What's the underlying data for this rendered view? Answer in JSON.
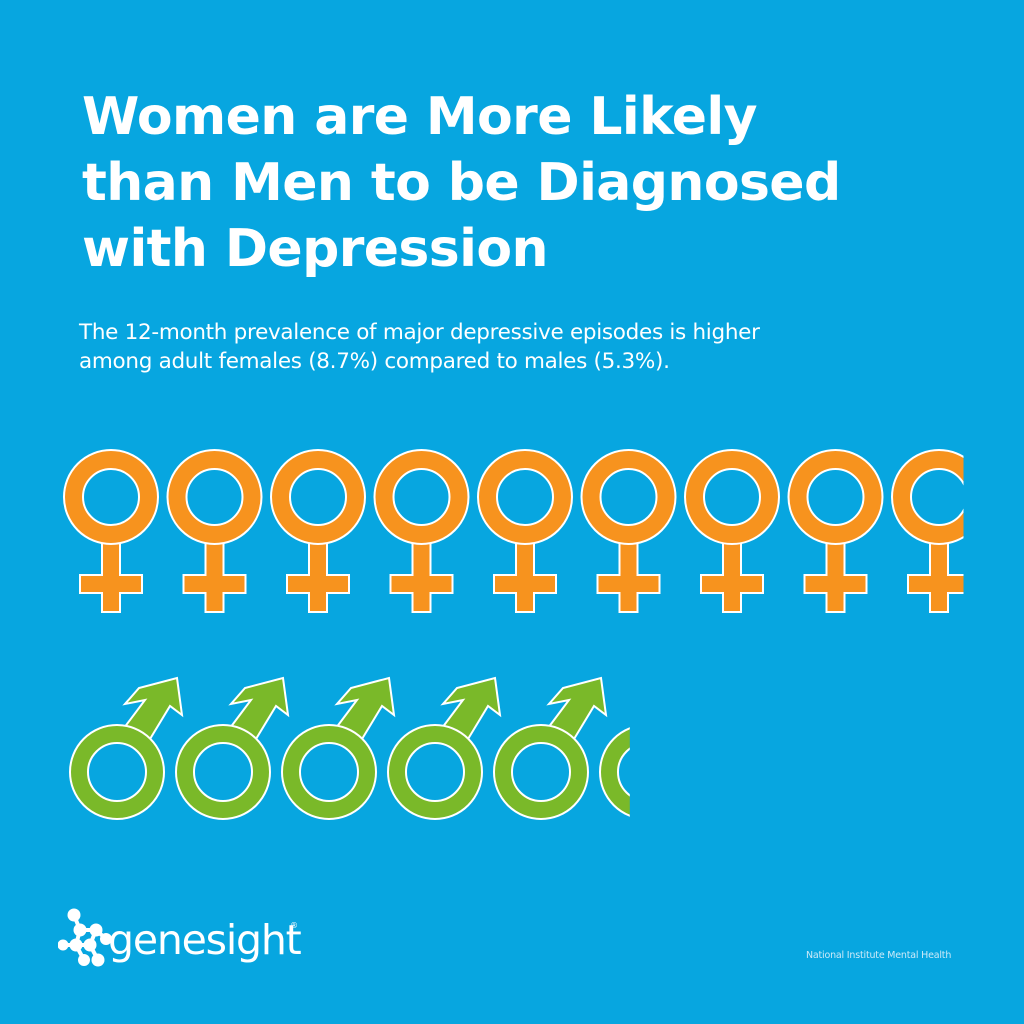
{
  "page": {
    "background_color": "#07A6E0"
  },
  "title": {
    "lines": [
      "Women are More Likely",
      "than Men to be Diagnosed",
      "with Depression"
    ]
  },
  "subtitle": {
    "lines": [
      "The 12-month prevalence of major depressive episodes is higher",
      "among adult females (8.7%) compared to males (5.3%)."
    ]
  },
  "chart_data": {
    "type": "bar",
    "subtype": "pictograph",
    "title": "Women are More Likely than Men to be Diagnosed with Depression",
    "subtitle": "The 12-month prevalence of major depressive episodes is higher among adult females (8.7%) compared to males (5.3%).",
    "categories": [
      "Adult females",
      "Adult males"
    ],
    "values": [
      8.7,
      5.3
    ],
    "unit": "%",
    "xlabel": "",
    "ylabel": "12-month prevalence of major depressive episodes (%)",
    "icon_unit": "1 symbol = 1%",
    "series": [
      {
        "name": "Female",
        "value": 8.7,
        "icon": "female-symbol-icon",
        "color": "#F7931E"
      },
      {
        "name": "Male",
        "value": 5.3,
        "icon": "male-symbol-icon",
        "color": "#7AB929"
      }
    ],
    "legend": "none",
    "grid": false,
    "source": "National Institute Mental Health"
  },
  "colors": {
    "female": "#F7931E",
    "male": "#7AB929",
    "outline": "#FFFFFF"
  },
  "logo": {
    "icon": "molecule-dots-icon",
    "text": "genesight",
    "registered_mark": "®"
  },
  "source": {
    "text": "National Institute Mental Health"
  }
}
